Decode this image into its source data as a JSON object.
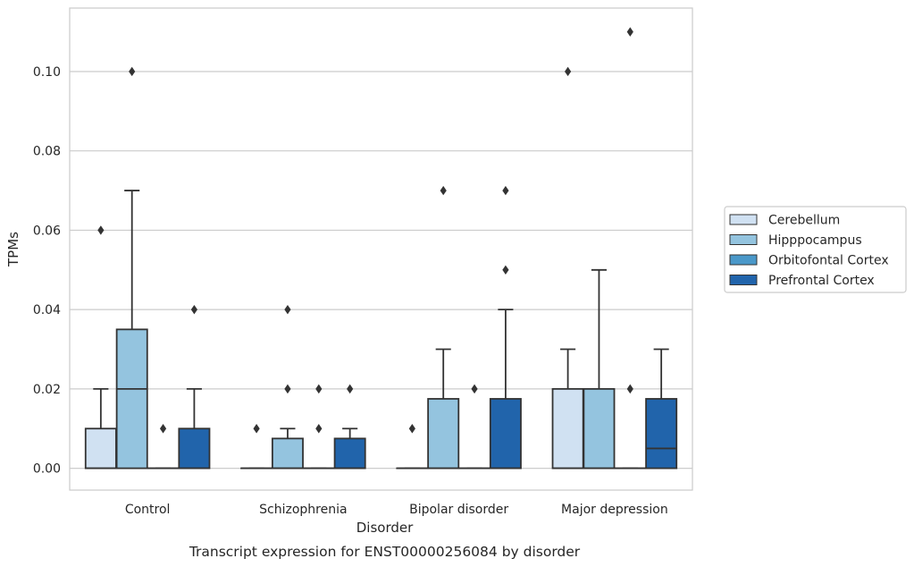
{
  "chart_data": {
    "type": "box",
    "caption": "Transcript expression for ENST00000256084 by disorder",
    "xlabel": "Disorder",
    "ylabel": "TPMs",
    "ylim": [
      -0.0055,
      0.116
    ],
    "yticks": [
      "0.00",
      "0.02",
      "0.04",
      "0.06",
      "0.08",
      "0.10"
    ],
    "grid": true,
    "legend_position": "right",
    "categories": [
      "Control",
      "Schizophrenia",
      "Bipolar disorder",
      "Major depression"
    ],
    "series": [
      {
        "name": "Cerebellum",
        "color": "#d0e1f2",
        "boxes": [
          {
            "min": 0,
            "q1": 0,
            "median": 0,
            "q3": 0.01,
            "max": 0.02,
            "outliers": [
              0.06
            ]
          },
          {
            "min": 0,
            "q1": 0,
            "median": 0,
            "q3": 0,
            "max": 0,
            "outliers": [
              0.01
            ]
          },
          {
            "min": 0,
            "q1": 0,
            "median": 0,
            "q3": 0,
            "max": 0,
            "outliers": [
              0.01
            ]
          },
          {
            "min": 0,
            "q1": 0,
            "median": 0,
            "q3": 0.02,
            "max": 0.03,
            "outliers": [
              0.1
            ]
          }
        ]
      },
      {
        "name": "Hipppocampus",
        "color": "#94c4df",
        "boxes": [
          {
            "min": 0,
            "q1": 0,
            "median": 0.02,
            "q3": 0.035,
            "max": 0.07,
            "outliers": [
              0.1
            ]
          },
          {
            "min": 0,
            "q1": 0,
            "median": 0,
            "q3": 0.0075,
            "max": 0.01,
            "outliers": [
              0.02,
              0.04
            ]
          },
          {
            "min": 0,
            "q1": 0,
            "median": 0,
            "q3": 0.0175,
            "max": 0.03,
            "outliers": [
              0.07
            ]
          },
          {
            "min": 0,
            "q1": 0,
            "median": 0,
            "q3": 0.02,
            "max": 0.05,
            "outliers": []
          }
        ]
      },
      {
        "name": "Orbitofontal Cortex",
        "color": "#4a98c9",
        "boxes": [
          {
            "min": 0,
            "q1": 0,
            "median": 0,
            "q3": 0,
            "max": 0,
            "outliers": [
              0.01
            ]
          },
          {
            "min": 0,
            "q1": 0,
            "median": 0,
            "q3": 0,
            "max": 0,
            "outliers": [
              0.01,
              0.02
            ]
          },
          {
            "min": 0,
            "q1": 0,
            "median": 0,
            "q3": 0,
            "max": 0,
            "outliers": [
              0.02
            ]
          },
          {
            "min": 0,
            "q1": 0,
            "median": 0,
            "q3": 0,
            "max": 0,
            "outliers": [
              0.02,
              0.11
            ]
          }
        ]
      },
      {
        "name": "Prefrontal Cortex",
        "color": "#2164ab",
        "boxes": [
          {
            "min": 0,
            "q1": 0,
            "median": 0,
            "q3": 0.01,
            "max": 0.02,
            "outliers": [
              0.04
            ]
          },
          {
            "min": 0,
            "q1": 0,
            "median": 0,
            "q3": 0.0075,
            "max": 0.01,
            "outliers": [
              0.02
            ]
          },
          {
            "min": 0,
            "q1": 0,
            "median": 0,
            "q3": 0.0175,
            "max": 0.04,
            "outliers": [
              0.05,
              0.07
            ]
          },
          {
            "min": 0,
            "q1": 0,
            "median": 0.005,
            "q3": 0.0175,
            "max": 0.03,
            "outliers": []
          }
        ]
      }
    ]
  }
}
